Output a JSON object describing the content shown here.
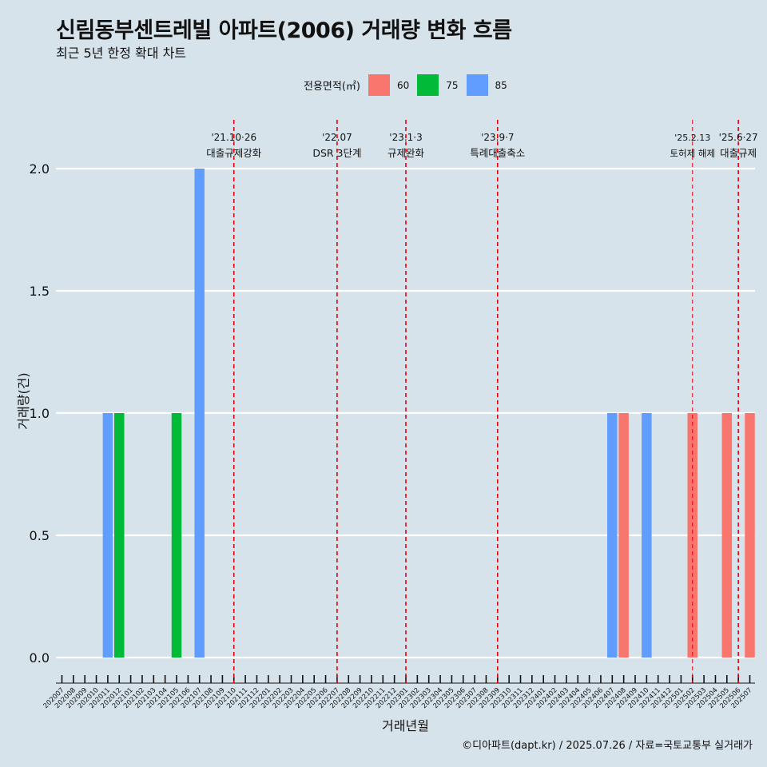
{
  "title": "신림동부센트레빌 아파트(2006) 거래량 변화 흐름",
  "subtitle": "최근 5년 한정 확대 차트",
  "caption": "©디아파트(dapt.kr) / 2025.07.26 / 자료=국토교통부 실거래가",
  "legend": {
    "title": "전용면적(㎡)",
    "items": [
      {
        "label": "60",
        "color": "#f8766d"
      },
      {
        "label": "75",
        "color": "#00ba38"
      },
      {
        "label": "85",
        "color": "#619cff"
      }
    ]
  },
  "chart_data": {
    "type": "bar",
    "xlabel": "거래년월",
    "ylabel": "거래량(건)",
    "ylim": [
      0,
      2
    ],
    "yticks": [
      0.0,
      0.5,
      1.0,
      1.5,
      2.0
    ],
    "categories": [
      "202007",
      "202008",
      "202009",
      "202010",
      "202011",
      "202012",
      "202101",
      "202102",
      "202103",
      "202104",
      "202105",
      "202106",
      "202107",
      "202108",
      "202109",
      "202110",
      "202111",
      "202112",
      "202201",
      "202202",
      "202203",
      "202204",
      "202205",
      "202206",
      "202207",
      "202208",
      "202209",
      "202210",
      "202211",
      "202212",
      "202301",
      "202302",
      "202303",
      "202304",
      "202305",
      "202306",
      "202307",
      "202308",
      "202309",
      "202310",
      "202311",
      "202312",
      "202401",
      "202402",
      "202403",
      "202404",
      "202405",
      "202406",
      "202407",
      "202408",
      "202409",
      "202410",
      "202411",
      "202412",
      "202501",
      "202502",
      "202503",
      "202504",
      "202505",
      "202506",
      "202507"
    ],
    "series": [
      {
        "name": "60",
        "color": "#f8766d",
        "points": [
          {
            "x": "202408",
            "y": 1
          },
          {
            "x": "202502",
            "y": 1
          },
          {
            "x": "202505",
            "y": 1
          },
          {
            "x": "202507",
            "y": 1
          }
        ]
      },
      {
        "name": "75",
        "color": "#00ba38",
        "points": [
          {
            "x": "202012",
            "y": 1
          },
          {
            "x": "202105",
            "y": 1
          }
        ]
      },
      {
        "name": "85",
        "color": "#619cff",
        "points": [
          {
            "x": "202011",
            "y": 1
          },
          {
            "x": "202107",
            "y": 2
          },
          {
            "x": "202407",
            "y": 1
          },
          {
            "x": "202410",
            "y": 1
          }
        ]
      }
    ],
    "annotations": [
      {
        "x": "202110",
        "line1": "'21.10·26",
        "line2": "대출규제강화"
      },
      {
        "x": "202207",
        "line1": "'22.07",
        "line2": "DSR 3단계"
      },
      {
        "x": "202301",
        "line1": "'23.1·3",
        "line2": "규제완화"
      },
      {
        "x": "202309",
        "line1": "'23.9·7",
        "line2": "특례대출축소"
      },
      {
        "x": "202502",
        "line1": "'25.2.13",
        "line2": "토허제 해제"
      },
      {
        "x": "202506",
        "line1": "'25.6·27",
        "line2": "대출규제"
      }
    ],
    "annotation_color": "#e8000b"
  }
}
